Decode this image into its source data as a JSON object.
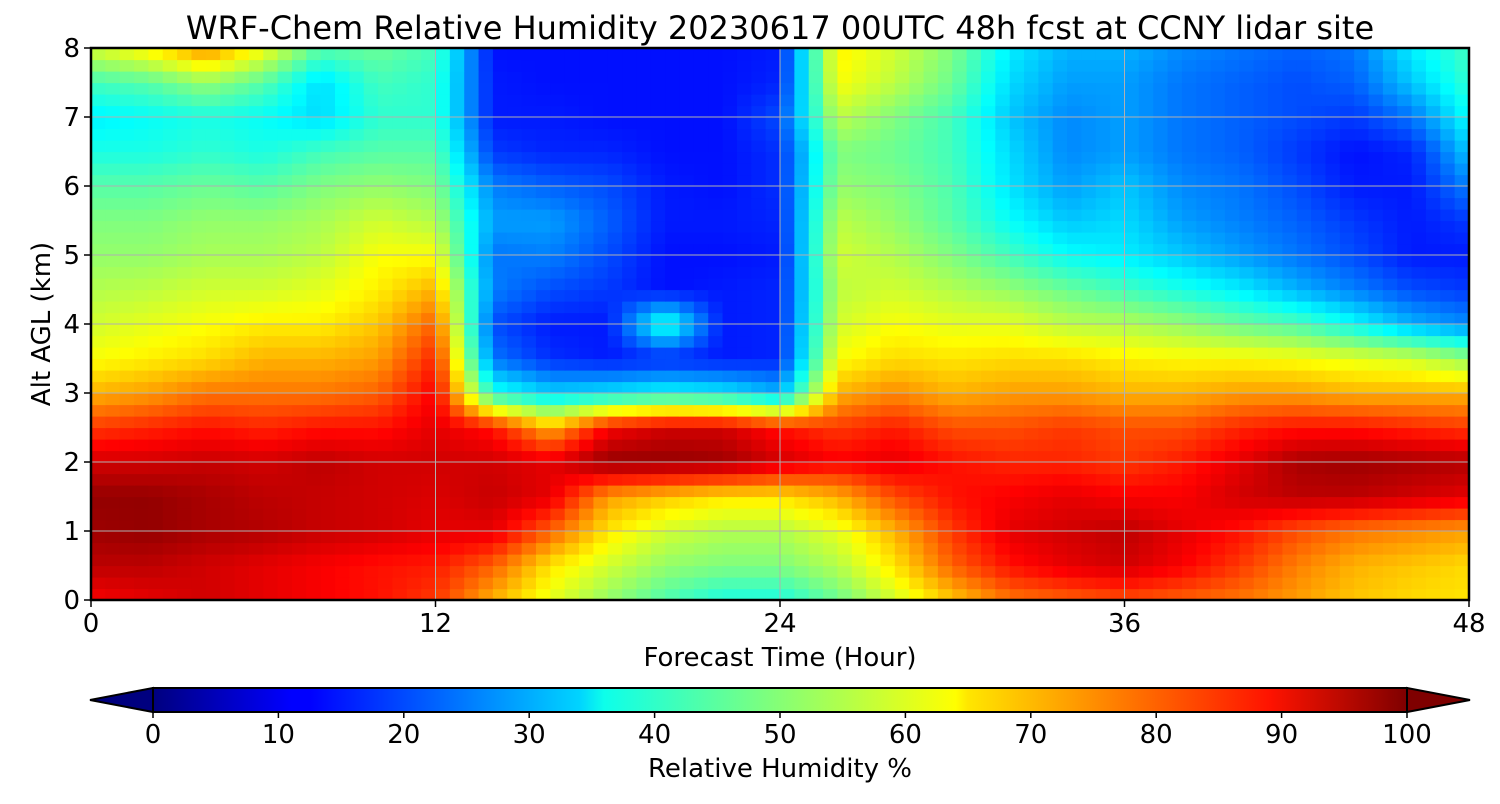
{
  "chart_data": {
    "type": "heatmap",
    "title": "WRF-Chem Relative Humidity 20230617 00UTC 48h fcst at CCNY lidar site",
    "xlabel": "Forecast Time (Hour)",
    "ylabel": "Alt AGL (km)",
    "xlim": [
      0,
      48
    ],
    "ylim": [
      0,
      8
    ],
    "x_ticks": [
      "0",
      "12",
      "24",
      "36",
      "48"
    ],
    "y_ticks": [
      "0",
      "1",
      "2",
      "3",
      "4",
      "5",
      "6",
      "7",
      "8"
    ],
    "grid": true,
    "colorbar": {
      "label": "Relative Humidity %",
      "colormap": "jet",
      "range": [
        0,
        100
      ],
      "extend": "both",
      "ticks": [
        "0",
        "10",
        "20",
        "30",
        "40",
        "50",
        "60",
        "70",
        "80",
        "90",
        "100"
      ]
    },
    "x": [
      0,
      2,
      4,
      6,
      8,
      10,
      12,
      14,
      16,
      18,
      20,
      22,
      24,
      26,
      28,
      30,
      32,
      34,
      36,
      38,
      40,
      42,
      44,
      46,
      48
    ],
    "y": [
      0,
      0.5,
      1,
      1.5,
      2,
      2.5,
      3,
      3.5,
      4,
      4.5,
      5,
      5.5,
      6,
      6.5,
      7,
      7.5,
      8
    ],
    "z": [
      [
        88,
        90,
        92,
        90,
        88,
        86,
        82,
        70,
        60,
        52,
        45,
        40,
        40,
        48,
        58,
        68,
        76,
        78,
        80,
        78,
        76,
        72,
        68,
        66,
        65
      ],
      [
        94,
        94,
        92,
        90,
        88,
        86,
        85,
        78,
        65,
        58,
        52,
        50,
        50,
        55,
        65,
        78,
        86,
        90,
        92,
        88,
        82,
        75,
        70,
        68,
        66
      ],
      [
        97,
        98,
        96,
        95,
        93,
        92,
        90,
        90,
        78,
        65,
        58,
        55,
        55,
        60,
        70,
        82,
        90,
        92,
        94,
        90,
        86,
        80,
        76,
        74,
        72
      ],
      [
        98,
        98,
        96,
        94,
        93,
        92,
        91,
        93,
        90,
        72,
        68,
        65,
        65,
        70,
        80,
        86,
        88,
        90,
        88,
        88,
        92,
        94,
        94,
        92,
        90
      ],
      [
        92,
        92,
        93,
        92,
        94,
        92,
        92,
        92,
        90,
        98,
        98,
        97,
        92,
        88,
        90,
        86,
        84,
        84,
        82,
        85,
        90,
        96,
        97,
        96,
        95
      ],
      [
        82,
        84,
        86,
        84,
        86,
        86,
        90,
        86,
        70,
        88,
        92,
        92,
        86,
        82,
        85,
        80,
        80,
        82,
        80,
        80,
        84,
        86,
        86,
        84,
        82
      ],
      [
        70,
        72,
        76,
        76,
        76,
        78,
        88,
        40,
        33,
        35,
        38,
        36,
        30,
        70,
        74,
        70,
        72,
        72,
        70,
        70,
        72,
        72,
        70,
        70,
        70
      ],
      [
        62,
        64,
        66,
        70,
        70,
        72,
        84,
        24,
        17,
        15,
        16,
        15,
        16,
        62,
        66,
        65,
        66,
        66,
        64,
        63,
        63,
        62,
        60,
        58,
        52
      ],
      [
        58,
        60,
        62,
        64,
        64,
        68,
        78,
        20,
        15,
        15,
        42,
        15,
        16,
        58,
        62,
        60,
        60,
        56,
        55,
        52,
        48,
        45,
        38,
        30,
        26
      ],
      [
        55,
        56,
        58,
        58,
        60,
        64,
        70,
        25,
        20,
        18,
        14,
        15,
        16,
        56,
        58,
        55,
        52,
        48,
        44,
        40,
        36,
        30,
        25,
        20,
        18
      ],
      [
        52,
        52,
        54,
        54,
        56,
        62,
        62,
        24,
        25,
        20,
        14,
        14,
        15,
        58,
        55,
        50,
        44,
        38,
        36,
        32,
        28,
        24,
        20,
        15,
        15
      ],
      [
        50,
        50,
        52,
        52,
        54,
        58,
        55,
        28,
        28,
        22,
        15,
        15,
        16,
        56,
        52,
        46,
        38,
        32,
        34,
        28,
        25,
        22,
        18,
        15,
        18
      ],
      [
        46,
        46,
        48,
        46,
        50,
        52,
        50,
        25,
        22,
        20,
        15,
        14,
        17,
        52,
        50,
        45,
        35,
        28,
        32,
        26,
        24,
        20,
        15,
        15,
        25
      ],
      [
        40,
        40,
        42,
        40,
        44,
        46,
        46,
        18,
        16,
        16,
        14,
        14,
        17,
        50,
        48,
        44,
        34,
        26,
        28,
        24,
        22,
        18,
        14,
        16,
        32
      ],
      [
        36,
        38,
        40,
        38,
        34,
        42,
        42,
        15,
        15,
        14,
        14,
        14,
        20,
        56,
        50,
        44,
        32,
        26,
        28,
        24,
        22,
        20,
        18,
        24,
        38
      ],
      [
        44,
        46,
        52,
        46,
        34,
        44,
        42,
        15,
        14,
        14,
        14,
        14,
        16,
        62,
        56,
        48,
        34,
        28,
        28,
        24,
        22,
        20,
        22,
        32,
        42
      ],
      [
        58,
        64,
        74,
        62,
        46,
        48,
        44,
        14,
        14,
        14,
        14,
        14,
        15,
        64,
        58,
        50,
        36,
        30,
        30,
        26,
        24,
        22,
        24,
        36,
        44
      ]
    ]
  }
}
